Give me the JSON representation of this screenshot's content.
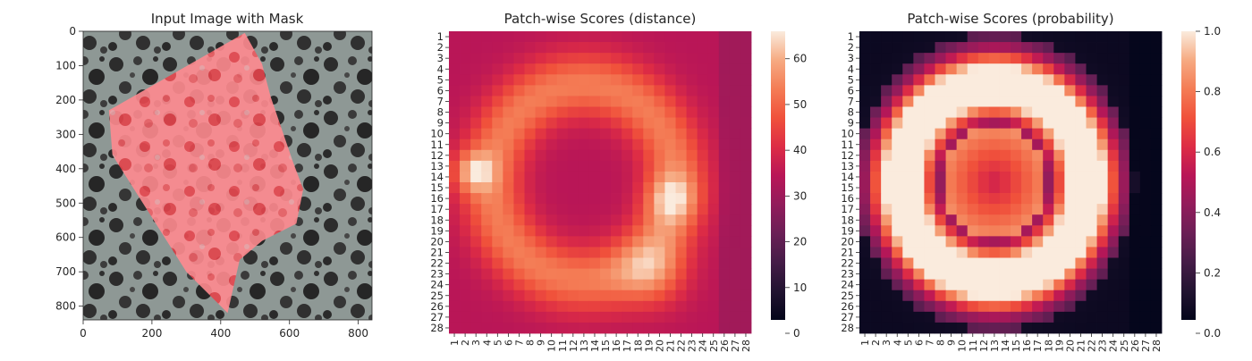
{
  "chart_data": [
    {
      "type": "image",
      "title": "Input Image with Mask",
      "xticks": [
        "0",
        "200",
        "400",
        "600",
        "800"
      ],
      "yticks": [
        "0",
        "100",
        "200",
        "300",
        "400",
        "500",
        "600",
        "700",
        "800"
      ],
      "xlim": [
        0,
        840
      ],
      "ylim": [
        840,
        0
      ],
      "image_description": "Grayscale mottled stone texture; a polygonal region overlaid with a semi-transparent red mask",
      "mask_polygon": [
        [
          470,
          5
        ],
        [
          520,
          95
        ],
        [
          545,
          190
        ],
        [
          610,
          380
        ],
        [
          640,
          460
        ],
        [
          620,
          560
        ],
        [
          520,
          610
        ],
        [
          455,
          665
        ],
        [
          420,
          820
        ],
        [
          300,
          700
        ],
        [
          85,
          360
        ],
        [
          75,
          230
        ],
        [
          470,
          5
        ]
      ],
      "colors": {
        "mask": "#ff4d55",
        "background_dark": "#2b2b2b",
        "background_light": "#8f9a97"
      }
    },
    {
      "type": "heatmap",
      "title": "Patch-wise Scores (distance)",
      "rows": 28,
      "cols": 28,
      "xticks": [
        "1",
        "2",
        "3",
        "4",
        "5",
        "6",
        "7",
        "8",
        "9",
        "10",
        "11",
        "12",
        "13",
        "14",
        "15",
        "16",
        "17",
        "18",
        "19",
        "20",
        "21",
        "22",
        "23",
        "24",
        "25",
        "26",
        "27",
        "28"
      ],
      "yticks": [
        "1",
        "2",
        "3",
        "4",
        "5",
        "6",
        "7",
        "8",
        "9",
        "10",
        "11",
        "12",
        "13",
        "14",
        "15",
        "16",
        "17",
        "18",
        "19",
        "20",
        "21",
        "22",
        "23",
        "24",
        "25",
        "26",
        "27",
        "28"
      ],
      "colorbar_ticks": [
        "0",
        "10",
        "20",
        "30",
        "40",
        "50",
        "60"
      ],
      "colorbar_range": [
        0,
        66
      ],
      "colormap": "rocket",
      "values_description": "distance scores roughly 30-65; ring-shaped higher values, hotspots near rows 12-15 cols 2-4 and rows 15-26 cols 18-21"
    },
    {
      "type": "heatmap",
      "title": "Patch-wise Scores (probability)",
      "rows": 28,
      "cols": 28,
      "xticks": [
        "1",
        "2",
        "3",
        "4",
        "5",
        "6",
        "7",
        "8",
        "9",
        "10",
        "11",
        "12",
        "13",
        "14",
        "15",
        "16",
        "17",
        "18",
        "19",
        "20",
        "21",
        "22",
        "23",
        "24",
        "25",
        "26",
        "27",
        "28"
      ],
      "yticks": [
        "1",
        "2",
        "3",
        "4",
        "5",
        "6",
        "7",
        "8",
        "9",
        "10",
        "11",
        "12",
        "13",
        "14",
        "15",
        "16",
        "17",
        "18",
        "19",
        "20",
        "21",
        "22",
        "23",
        "24",
        "25",
        "26",
        "27",
        "28"
      ],
      "colorbar_ticks": [
        "0.0",
        "0.2",
        "0.4",
        "0.6",
        "0.8",
        "1.0"
      ],
      "colorbar_range": [
        0,
        1
      ],
      "colormap": "rocket",
      "values_description": "probability near 1.0 in a broad ring, near 0 at corners and right edge"
    }
  ]
}
